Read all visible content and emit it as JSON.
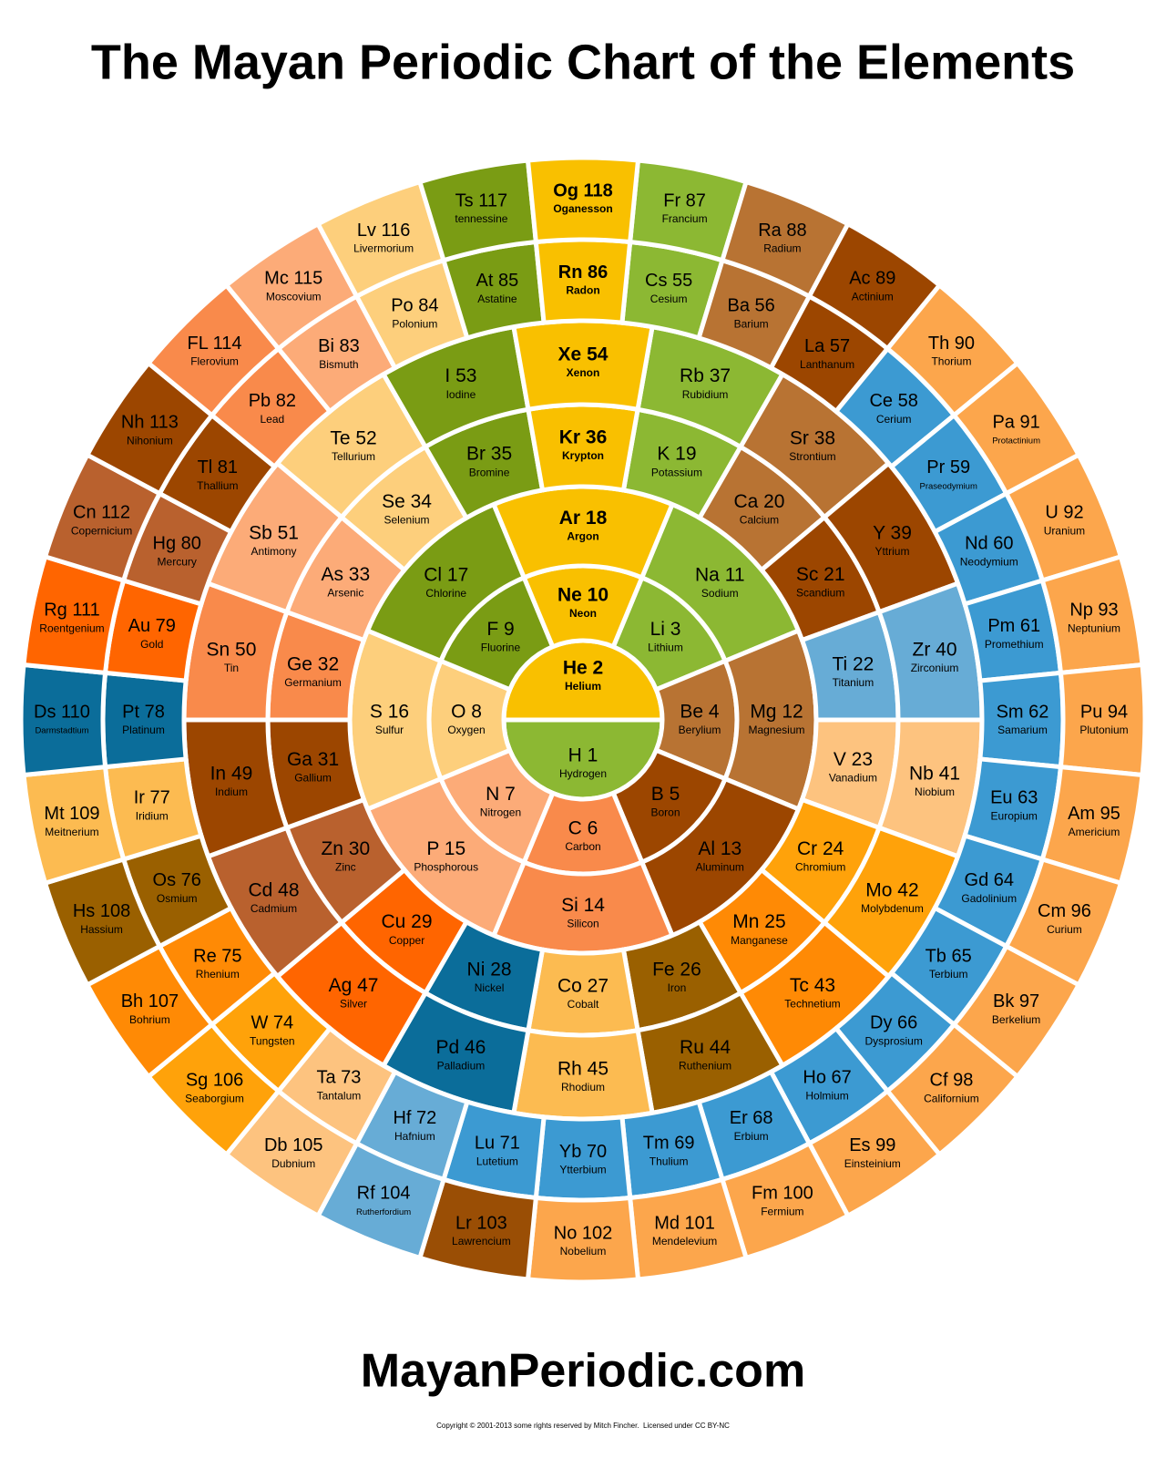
{
  "header": {
    "title": "The Mayan Periodic Chart of the Elements"
  },
  "elements": [
    {
      "label": "H 1",
      "name": "Hydrogen"
    },
    {
      "label": "He 2",
      "name": "Helium"
    },
    {
      "label": "Li 3",
      "name": "Lithium"
    },
    {
      "label": "Be 4",
      "name": "Berylium"
    },
    {
      "label": "B 5",
      "name": "Boron"
    },
    {
      "label": "C 6",
      "name": "Carbon"
    },
    {
      "label": "N 7",
      "name": "Nitrogen"
    },
    {
      "label": "O 8",
      "name": "Oxygen"
    },
    {
      "label": "F 9",
      "name": "Fluorine"
    },
    {
      "label": "Ne 10",
      "name": "Neon"
    },
    {
      "label": "Na 11",
      "name": "Sodium"
    },
    {
      "label": "Mg 12",
      "name": "Magnesium"
    },
    {
      "label": "Al 13",
      "name": "Aluminum"
    },
    {
      "label": "Si 14",
      "name": "Silicon"
    },
    {
      "label": "P 15",
      "name": "Phosphorous"
    },
    {
      "label": "S 16",
      "name": "Sulfur"
    },
    {
      "label": "Cl 17",
      "name": "Chlorine"
    },
    {
      "label": "Ar 18",
      "name": "Argon"
    },
    {
      "label": "K 19",
      "name": "Potassium"
    },
    {
      "label": "Ca 20",
      "name": "Calcium"
    },
    {
      "label": "Sc 21",
      "name": "Scandium"
    },
    {
      "label": "Ti 22",
      "name": "Titanium"
    },
    {
      "label": "V 23",
      "name": "Vanadium"
    },
    {
      "label": "Cr 24",
      "name": "Chromium"
    },
    {
      "label": "Mn 25",
      "name": "Manganese"
    },
    {
      "label": "Fe 26",
      "name": "Iron"
    },
    {
      "label": "Co 27",
      "name": "Cobalt"
    },
    {
      "label": "Ni 28",
      "name": "Nickel"
    },
    {
      "label": "Cu 29",
      "name": "Copper"
    },
    {
      "label": "Zn 30",
      "name": "Zinc"
    },
    {
      "label": "Ga 31",
      "name": "Gallium"
    },
    {
      "label": "Ge 32",
      "name": "Germanium"
    },
    {
      "label": "As 33",
      "name": "Arsenic"
    },
    {
      "label": "Se 34",
      "name": "Selenium"
    },
    {
      "label": "Br 35",
      "name": "Bromine"
    },
    {
      "label": "Kr 36",
      "name": "Krypton"
    },
    {
      "label": "Rb 37",
      "name": "Rubidium"
    },
    {
      "label": "Sr 38",
      "name": "Strontium"
    },
    {
      "label": "Y 39",
      "name": "Yttrium"
    },
    {
      "label": "Zr 40",
      "name": "Zirconium"
    },
    {
      "label": "Nb 41",
      "name": "Niobium"
    },
    {
      "label": "Mo 42",
      "name": "Molybdenum"
    },
    {
      "label": "Tc 43",
      "name": "Technetium"
    },
    {
      "label": "Ru 44",
      "name": "Ruthenium"
    },
    {
      "label": "Rh 45",
      "name": "Rhodium"
    },
    {
      "label": "Pd 46",
      "name": "Palladium"
    },
    {
      "label": "Ag 47",
      "name": "Silver"
    },
    {
      "label": "Cd 48",
      "name": "Cadmium"
    },
    {
      "label": "In 49",
      "name": "Indium"
    },
    {
      "label": "Sn 50",
      "name": "Tin"
    },
    {
      "label": "Sb 51",
      "name": "Antimony"
    },
    {
      "label": "Te 52",
      "name": "Tellurium"
    },
    {
      "label": "I 53",
      "name": "Iodine"
    },
    {
      "label": "Xe 54",
      "name": "Xenon"
    },
    {
      "label": "Cs 55",
      "name": "Cesium"
    },
    {
      "label": "Ba 56",
      "name": "Barium"
    },
    {
      "label": "La 57",
      "name": "Lanthanum"
    },
    {
      "label": "Ce 58",
      "name": "Cerium"
    },
    {
      "label": "Pr 59",
      "name": "Praseodymium"
    },
    {
      "label": "Nd 60",
      "name": "Neodymium"
    },
    {
      "label": "Pm 61",
      "name": "Promethium"
    },
    {
      "label": "Sm 62",
      "name": "Samarium"
    },
    {
      "label": "Eu 63",
      "name": "Europium"
    },
    {
      "label": "Gd 64",
      "name": "Gadolinium"
    },
    {
      "label": "Tb 65",
      "name": "Terbium"
    },
    {
      "label": "Dy 66",
      "name": "Dysprosium"
    },
    {
      "label": "Ho 67",
      "name": "Holmium"
    },
    {
      "label": "Er 68",
      "name": "Erbium"
    },
    {
      "label": "Tm 69",
      "name": "Thulium"
    },
    {
      "label": "Yb 70",
      "name": "Ytterbium"
    },
    {
      "label": "Lu 71",
      "name": "Lutetium"
    },
    {
      "label": "Hf 72",
      "name": "Hafnium"
    },
    {
      "label": "Ta 73",
      "name": "Tantalum"
    },
    {
      "label": "W 74",
      "name": "Tungsten"
    },
    {
      "label": "Re 75",
      "name": "Rhenium"
    },
    {
      "label": "Os 76",
      "name": "Osmium"
    },
    {
      "label": "Ir 77",
      "name": "Iridium"
    },
    {
      "label": "Pt 78",
      "name": "Platinum"
    },
    {
      "label": "Au 79",
      "name": "Gold"
    },
    {
      "label": "Hg 80",
      "name": "Mercury"
    },
    {
      "label": "Tl 81",
      "name": "Thallium"
    },
    {
      "label": "Pb 82",
      "name": "Lead"
    },
    {
      "label": "Bi 83",
      "name": "Bismuth"
    },
    {
      "label": "Po 84",
      "name": "Polonium"
    },
    {
      "label": "At 85",
      "name": "Astatine"
    },
    {
      "label": "Rn 86",
      "name": "Radon"
    },
    {
      "label": "Fr 87",
      "name": "Francium"
    },
    {
      "label": "Ra 88",
      "name": "Radium"
    },
    {
      "label": "Ac 89",
      "name": "Actinium"
    },
    {
      "label": "Th 90",
      "name": "Thorium"
    },
    {
      "label": "Pa 91",
      "name": "Protactinium"
    },
    {
      "label": "U 92",
      "name": "Uranium"
    },
    {
      "label": "Np 93",
      "name": "Neptunium"
    },
    {
      "label": "Pu 94",
      "name": "Plutonium"
    },
    {
      "label": "Am 95",
      "name": "Americium"
    },
    {
      "label": "Cm 96",
      "name": "Curium"
    },
    {
      "label": "Bk 97",
      "name": "Berkelium"
    },
    {
      "label": "Cf 98",
      "name": "Californium"
    },
    {
      "label": "Es 99",
      "name": "Einsteinium"
    },
    {
      "label": "Fm 100",
      "name": "Fermium"
    },
    {
      "label": "Md 101",
      "name": "Mendelevium"
    },
    {
      "label": "No 102",
      "name": "Nobelium"
    },
    {
      "label": "Lr 103",
      "name": "Lawrencium"
    },
    {
      "label": "Rf 104",
      "name": "Rutherfordium"
    },
    {
      "label": "Db 105",
      "name": "Dubnium"
    },
    {
      "label": "Sg 106",
      "name": "Seaborgium"
    },
    {
      "label": "Bh 107",
      "name": "Bohrium"
    },
    {
      "label": "Hs 108",
      "name": "Hassium"
    },
    {
      "label": "Mt 109",
      "name": "Meitnerium"
    },
    {
      "label": "Ds 110",
      "name": "Darmstadtium"
    },
    {
      "label": "Rg 111",
      "name": "Roentgenium"
    },
    {
      "label": "Cn 112",
      "name": "Copernicium"
    },
    {
      "label": "Nh 113",
      "name": "Nihonium"
    },
    {
      "label": "FL 114",
      "name": "Flerovium"
    },
    {
      "label": "Mc 115",
      "name": "Moscovium"
    },
    {
      "label": "Lv 116",
      "name": "Livermorium"
    },
    {
      "label": "Ts 117",
      "name": "tennessine"
    },
    {
      "label": "Og 118",
      "name": "Oganesson"
    }
  ],
  "footer": {
    "site": "MayanPeriodic.com",
    "copyright": "Copyright © 2001-2013 some rights reserved by Mitch Fincher.  Licensed under CC BY-NC"
  }
}
